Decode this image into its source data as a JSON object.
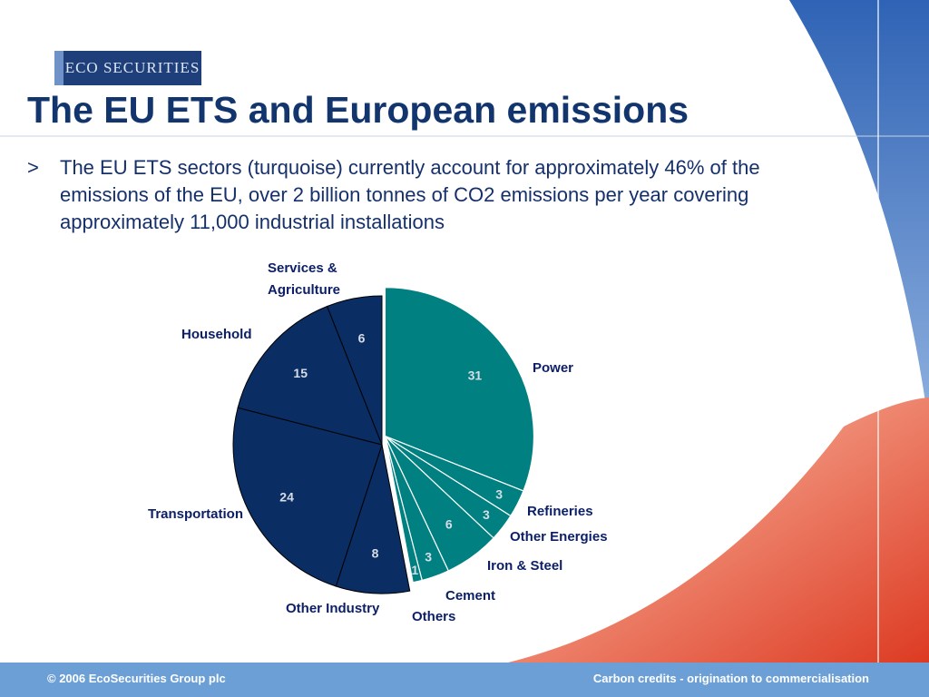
{
  "slide": {
    "logo_text": "ECO SECURITIES",
    "title": "The EU ETS and European emissions",
    "bullet_marker": ">",
    "bullet_text": "The EU ETS sectors (turquoise) currently account for approximately 46% of the emissions of the EU, over 2 billion tonnes of CO2 emissions per year covering approximately 11,000 industrial installations"
  },
  "footer": {
    "left": "© 2006 EcoSecurities Group plc",
    "right": "Carbon credits - origination to commercialisation"
  },
  "colors": {
    "title": "#12356e",
    "ets_slice": "#008080",
    "non_ets_slice": "#0a2d63",
    "label_text": "#0c1f66",
    "value_text": "#d7dde6",
    "footer_bar": "#6b9fd6"
  },
  "chart_data": {
    "type": "pie",
    "title": "",
    "exploded_group": "ets",
    "slices": [
      {
        "name": "Power",
        "value": 31,
        "group": "ets"
      },
      {
        "name": "Refineries",
        "value": 3,
        "group": "ets"
      },
      {
        "name": "Other Energies",
        "value": 3,
        "group": "ets"
      },
      {
        "name": "Iron & Steel",
        "value": 6,
        "group": "ets"
      },
      {
        "name": "Cement",
        "value": 3,
        "group": "ets"
      },
      {
        "name": "Others",
        "value": 1,
        "group": "ets"
      },
      {
        "name": "Other Industry",
        "value": 8,
        "group": "non-ets"
      },
      {
        "name": "Transportation",
        "value": 24,
        "group": "non-ets"
      },
      {
        "name": "Household",
        "value": 15,
        "group": "non-ets"
      },
      {
        "name": "Services & Agriculture",
        "value": 6,
        "group": "non-ets"
      }
    ]
  }
}
